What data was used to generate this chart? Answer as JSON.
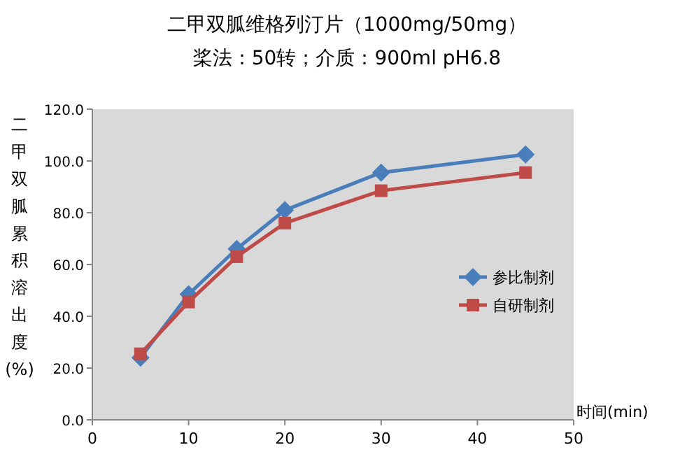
{
  "chart_data": {
    "type": "line",
    "title": "二甲双胍维格列汀片（1000mg/50mg）",
    "subtitle": "桨法：50转；介质：900ml pH6.8",
    "xlabel": "时间(min)",
    "ylabel": "二甲双胍累积溶出度(%)",
    "xlim": [
      0,
      50
    ],
    "xticks": [
      0,
      10,
      20,
      30,
      40,
      50
    ],
    "ylim": [
      0,
      120
    ],
    "yticks": [
      {
        "value": 0,
        "label": "0.0"
      },
      {
        "value": 20,
        "label": "20.0"
      },
      {
        "value": 40,
        "label": "40.0"
      },
      {
        "value": 60,
        "label": "60.0"
      },
      {
        "value": 80,
        "label": "80.0"
      },
      {
        "value": 100,
        "label": "100.0"
      },
      {
        "value": 120,
        "label": "120.0"
      }
    ],
    "grid": false,
    "legend": "right",
    "series": [
      {
        "name": "参比制剂",
        "color": "#4a7ebb",
        "marker": "diamond",
        "x": [
          5,
          10,
          15,
          20,
          30,
          45
        ],
        "values": [
          24,
          48.5,
          66,
          81,
          95.5,
          102.5
        ]
      },
      {
        "name": "自研制剂",
        "color": "#be4b48",
        "marker": "square",
        "x": [
          5,
          10,
          15,
          20,
          30,
          45
        ],
        "values": [
          25.5,
          45.5,
          63,
          76,
          88.5,
          95.5
        ]
      }
    ]
  }
}
